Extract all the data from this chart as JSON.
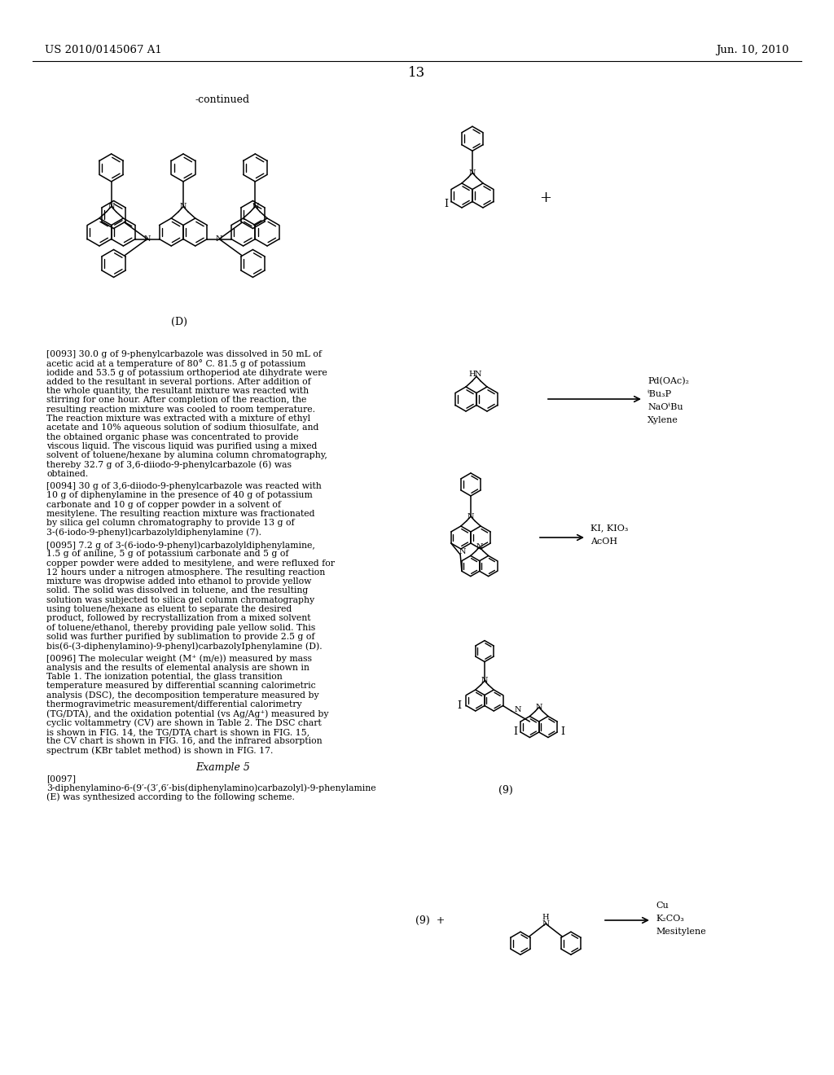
{
  "page_number": "13",
  "patent_left": "US 2010/0145067 A1",
  "patent_right": "Jun. 10, 2010",
  "continued_label": "-continued",
  "label_D": "(D)",
  "label_9": "(9)",
  "paragraph_0093": "[0093]  30.0 g of 9-phenylcarbazole was dissolved in 50 mL of acetic acid at a temperature of 80° C. 81.5 g of potassium iodide and 53.5 g of potassium orthoperiod ate dihydrate were added to the resultant in several portions. After addition of the whole quantity, the resultant mixture was reacted with stirring for one hour. After completion of the reaction, the resulting reaction mixture was cooled to room temperature. The reaction mixture was extracted with a mixture of ethyl acetate and 10% aqueous solution of sodium thiosulfate, and the obtained organic phase was concentrated to provide viscous liquid. The viscous liquid was purified using a mixed solvent of toluene/hexane by alumina column chromatography, thereby 32.7 g of 3,6-diiodo-9-phenylcarbazole (6) was obtained.",
  "paragraph_0094": "[0094]  30 g of 3,6-diiodo-9-phenylcarbazole was reacted with 10 g of diphenylamine in the presence of 40 g of potassium carbonate and 10 g of copper powder in a solvent of mesitylene. The resulting reaction mixture was fractionated by silica gel column chromatography to provide 13 g of 3-(6-iodo-9-phenyl)carbazolyldiphenylamine (7).",
  "paragraph_0095": "[0095]  7.2 g of 3-(6-iodo-9-phenyl)carbazolyldiphenylamine, 1.5 g of aniline, 5 g of potassium carbonate and 5 g of copper powder were added to mesitylene, and were refluxed for 12 hours under a nitrogen atmosphere. The resulting reaction mixture was dropwise added into ethanol to provide yellow solid. The solid was dissolved in toluene, and the resulting solution was subjected to silica gel column chromatography using toluene/hexane as eluent to separate the desired product, followed by recrystallization from a mixed solvent of toluene/ethanol, thereby providing pale yellow solid. This solid was further purified by sublimation to provide 2.5 g of bis(6-(3-diphenylamino)-9-phenyl)carbazolyIphenylamine (D).",
  "paragraph_0096": "[0096]  The molecular weight (M⁺ (m/e)) measured by mass analysis and the results of elemental analysis are shown in Table 1. The ionization potential, the glass transition temperature measured by differential scanning calorimetric analysis (DSC), the decomposition temperature measured by thermogravimetric measurement/differential calorimetry (TG/DTA), and the oxidation potential (vs Ag/Ag⁺) measured by cyclic voltammetry (CV) are shown in Table 2. The DSC chart is shown in FIG. 14, the TG/DTA chart is shown in FIG. 15, the CV chart is shown in FIG. 16, and the infrared absorption spectrum (KBr tablet method) is shown in FIG. 17.",
  "example5_header": "Example 5",
  "paragraph_0097": "[0097]  3-diphenylamino-6-(9′-(3′,6′-bis(diphenylamino)carbazolyl)-9-phenylamine (E) was synthesized according to the following scheme.",
  "background_color": "#ffffff",
  "text_color": "#000000"
}
